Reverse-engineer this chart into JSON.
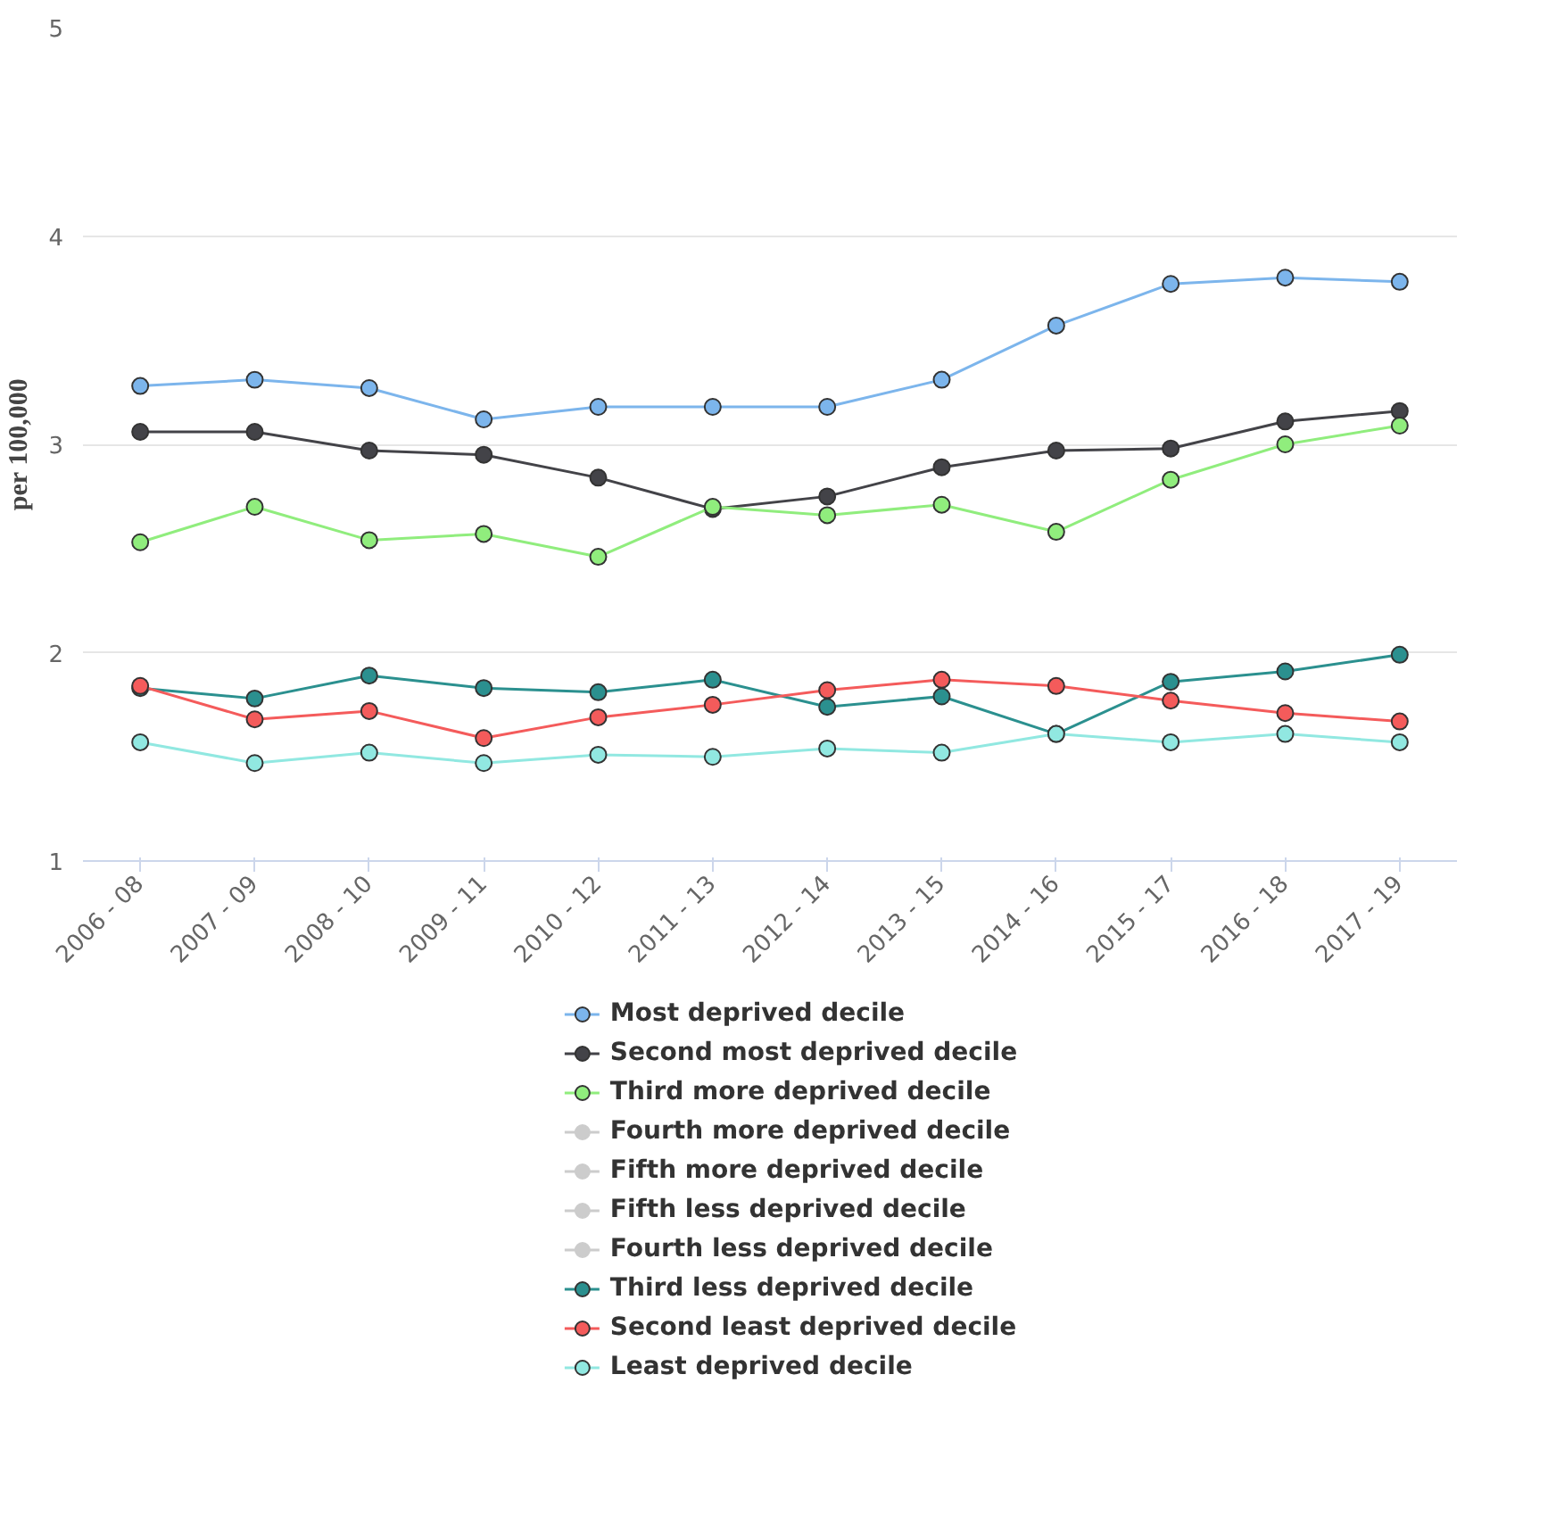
{
  "chart_data": {
    "type": "line",
    "ylabel": "per 100,000",
    "categories": [
      "2006 - 08",
      "2007 - 09",
      "2008 - 10",
      "2009 - 11",
      "2010 - 12",
      "2011 - 13",
      "2012 - 14",
      "2013 - 15",
      "2014 - 16",
      "2015 - 17",
      "2016 - 18",
      "2017 - 19"
    ],
    "ylim": [
      1,
      5
    ],
    "yticks": [
      1,
      2,
      3,
      4,
      5
    ],
    "grid": "y",
    "legend": "bottom",
    "marker": "circle",
    "line_style": "solid",
    "series": [
      {
        "name": "Most deprived decile",
        "color": "#7cb5ec",
        "values": [
          3.28,
          3.31,
          3.27,
          3.12,
          3.18,
          3.18,
          3.18,
          3.31,
          3.57,
          3.77,
          3.8,
          3.78
        ]
      },
      {
        "name": "Second most deprived decile",
        "color": "#434348",
        "values": [
          3.06,
          3.06,
          2.97,
          2.95,
          2.84,
          2.69,
          2.75,
          2.89,
          2.97,
          2.98,
          3.11,
          3.16
        ]
      },
      {
        "name": "Third more deprived decile",
        "color": "#90ed7d",
        "values": [
          2.53,
          2.7,
          2.54,
          2.57,
          2.46,
          2.7,
          2.66,
          2.71,
          2.58,
          2.83,
          3.0,
          3.09
        ]
      },
      {
        "name": "Fourth more deprived decile",
        "color": "#cccccc",
        "values": [
          null,
          null,
          null,
          null,
          null,
          null,
          null,
          null,
          null,
          null,
          null,
          null
        ]
      },
      {
        "name": "Fifth more deprived decile",
        "color": "#cccccc",
        "values": [
          null,
          null,
          null,
          null,
          null,
          null,
          null,
          null,
          null,
          null,
          null,
          null
        ]
      },
      {
        "name": "Fifth less deprived decile",
        "color": "#cccccc",
        "values": [
          null,
          null,
          null,
          null,
          null,
          null,
          null,
          null,
          null,
          null,
          null,
          null
        ]
      },
      {
        "name": "Fourth less deprived decile",
        "color": "#cccccc",
        "values": [
          null,
          null,
          null,
          null,
          null,
          null,
          null,
          null,
          null,
          null,
          null,
          null
        ]
      },
      {
        "name": "Third less deprived decile",
        "color": "#2b908f",
        "values": [
          1.83,
          1.78,
          1.89,
          1.83,
          1.81,
          1.87,
          1.74,
          1.79,
          1.61,
          1.86,
          1.91,
          1.99
        ]
      },
      {
        "name": "Second least deprived decile",
        "color": "#f45b5b",
        "values": [
          1.84,
          1.68,
          1.72,
          1.59,
          1.69,
          1.75,
          1.82,
          1.87,
          1.84,
          1.77,
          1.71,
          1.67
        ]
      },
      {
        "name": "Least deprived decile",
        "color": "#91e8e1",
        "values": [
          1.57,
          1.47,
          1.52,
          1.47,
          1.51,
          1.5,
          1.54,
          1.52,
          1.61,
          1.57,
          1.61,
          1.57
        ]
      }
    ]
  }
}
